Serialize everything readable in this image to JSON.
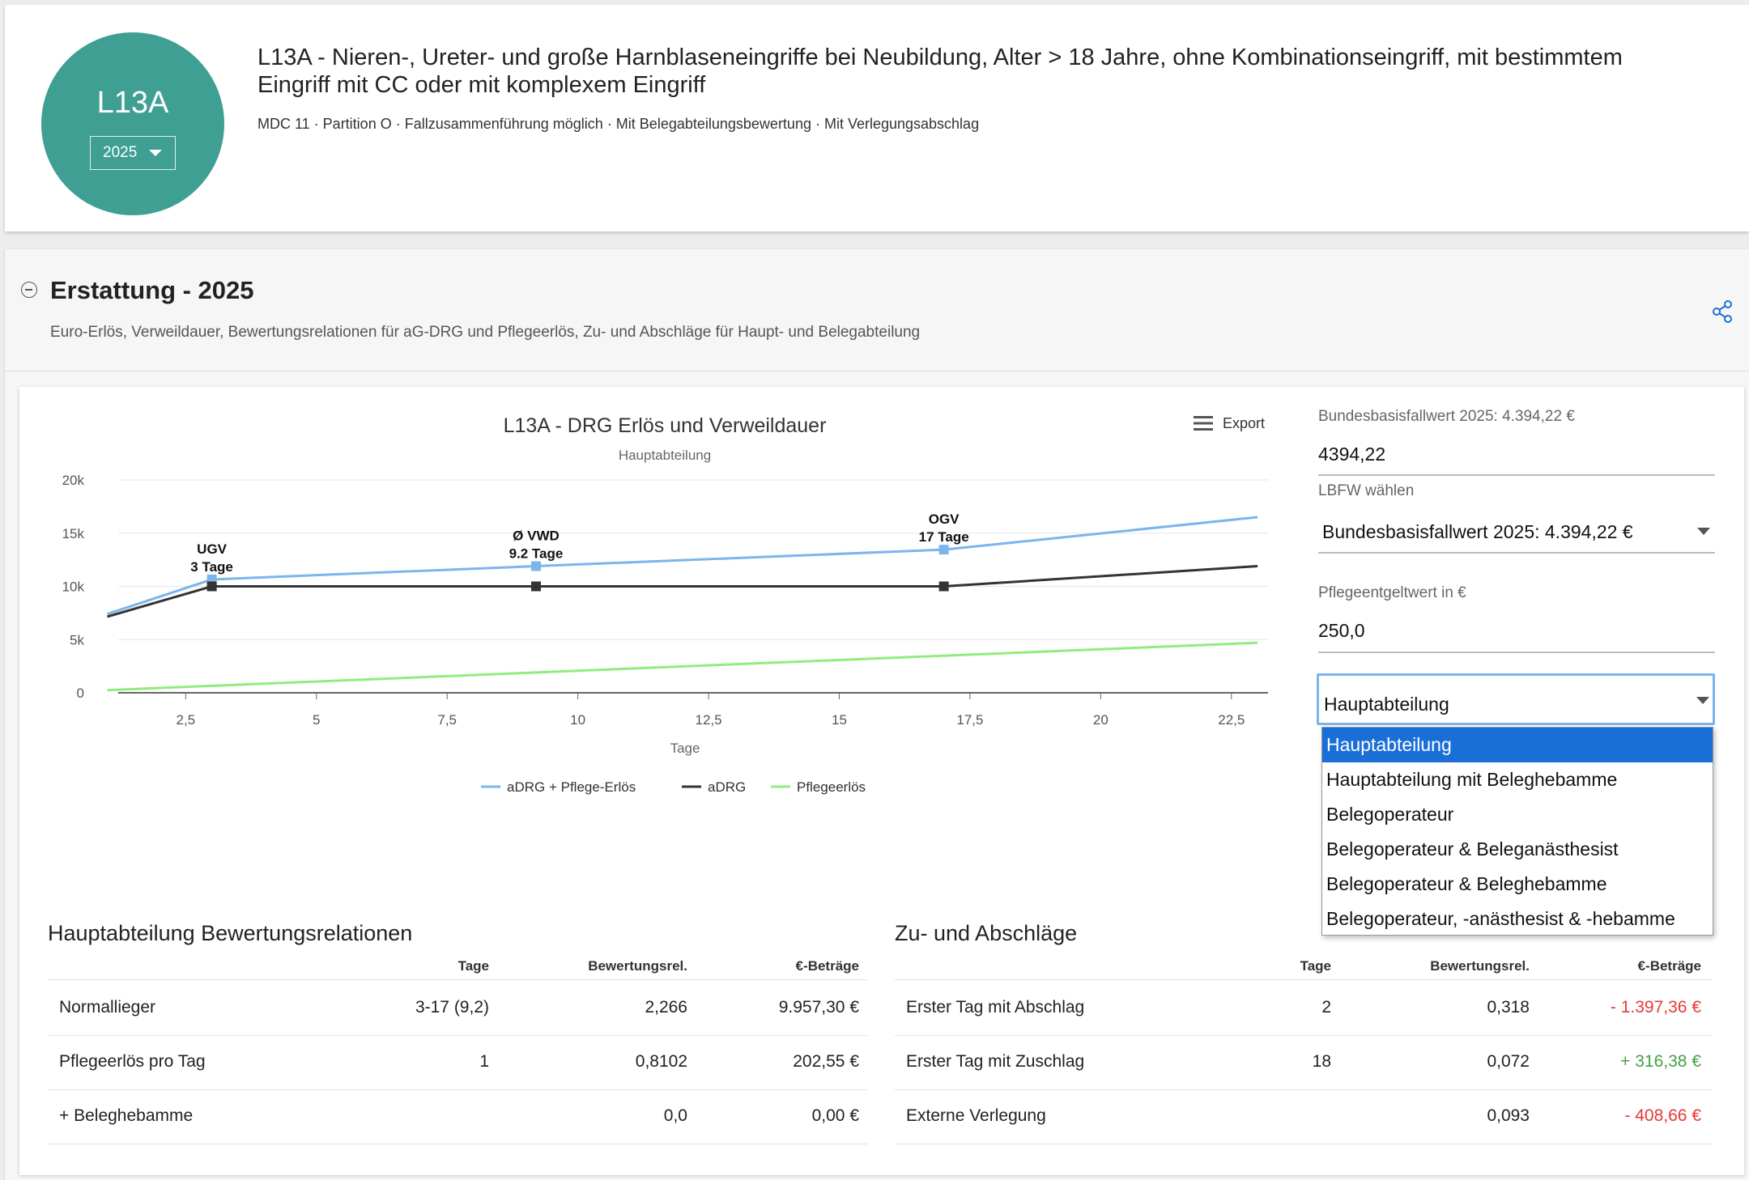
{
  "header": {
    "code": "L13A",
    "year": "2025",
    "title": "L13A - Nieren-, Ureter- und große Harnblaseneingriffe bei Neubildung, Alter > 18 Jahre, ohne Kombinationseingriff, mit bestimmtem Eingriff mit CC oder mit komplexem Eingriff",
    "meta": "MDC 11 · Partition O · Fallzusammenführung möglich · Mit Belegabteilungsbewertung · Mit Verlegungsabschlag",
    "circle_color": "#3f9f93"
  },
  "section": {
    "title": "Erstattung - 2025",
    "subtitle": "Euro-Erlös, Verweildauer, Bewertungsrelationen für aG-DRG und Pflegeerlös, Zu- und Abschläge für Haupt- und Belegabteilung",
    "share_icon": "share-icon",
    "collapse_icon": "minus-circle-icon"
  },
  "chart": {
    "export_label": "Export"
  },
  "chart_data": {
    "type": "line",
    "title": "L13A - DRG Erlös und Verweildauer",
    "subtitle": "Hauptabteilung",
    "xlabel": "Tage",
    "ylabel": "",
    "xlim": [
      0.9,
      23.2
    ],
    "ylim": [
      0,
      20000
    ],
    "x_ticks": [
      2.5,
      5,
      7.5,
      10,
      12.5,
      15,
      17.5,
      20,
      22.5
    ],
    "x_tick_labels": [
      "2,5",
      "5",
      "7,5",
      "10",
      "12,5",
      "15",
      "17,5",
      "20",
      "22,5"
    ],
    "y_ticks": [
      0,
      5000,
      10000,
      15000,
      20000
    ],
    "y_tick_labels": [
      "0",
      "5k",
      "10k",
      "15k",
      "20k"
    ],
    "grid": "horizontal",
    "legend_position": "bottom",
    "series": [
      {
        "name": "aDRG + Pflege-Erlös",
        "color": "#7cb5ec",
        "x": [
          1,
          3,
          9.2,
          17,
          23
        ],
        "y": [
          7400,
          10650,
          11900,
          13450,
          16500
        ]
      },
      {
        "name": "aDRG",
        "color": "#333333",
        "x": [
          1,
          3,
          9.2,
          17,
          23
        ],
        "y": [
          7150,
          10000,
          10000,
          10000,
          11900
        ]
      },
      {
        "name": "Pflegeerlös",
        "color": "#90ed7d",
        "x": [
          1,
          23
        ],
        "y": [
          250,
          4700
        ]
      }
    ],
    "annotations": [
      {
        "line1": "UGV",
        "line2": "3 Tage",
        "x": 3,
        "y": 10650
      },
      {
        "line1": "Ø VWD",
        "line2": "9.2 Tage",
        "x": 9.2,
        "y": 11900
      },
      {
        "line1": "OGV",
        "line2": "17 Tage",
        "x": 17,
        "y": 13450
      }
    ],
    "markers": [
      {
        "series": 0,
        "x": [
          3,
          9.2,
          17
        ]
      },
      {
        "series": 1,
        "x": [
          3,
          9.2,
          17
        ]
      }
    ]
  },
  "form": {
    "bbfw_label": "Bundesbasisfallwert 2025: 4.394,22 €",
    "bbfw_value": "4394,22",
    "lbfw_label": "LBFW wählen",
    "lbfw_value": "Bundesbasisfallwert 2025: 4.394,22 €",
    "pflege_label": "Pflegeentgeltwert in €",
    "pflege_value": "250,0",
    "dept_value": "Hauptabteilung",
    "dept_options": [
      "Hauptabteilung",
      "Hauptabteilung mit Beleghebamme",
      "Belegoperateur",
      "Belegoperateur & Beleganästhesist",
      "Belegoperateur & Beleghebamme",
      "Belegoperateur, -anästhesist & -hebamme"
    ],
    "accent": "#1a6fd6"
  },
  "table_left": {
    "title": "Hauptabteilung Bewertungsrelationen",
    "headers": [
      "Tage",
      "Bewertungsrel.",
      "€-Beträge"
    ],
    "rows": [
      {
        "label": "Normallieger",
        "tage": "3-17 (9,2)",
        "rel": "2,266",
        "betrag": "9.957,30 €"
      },
      {
        "label": "Pflegeerlös pro Tag",
        "tage": "1",
        "rel": "0,8102",
        "betrag": "202,55 €"
      },
      {
        "label": "+ Beleghebamme",
        "tage": "",
        "rel": "0,0",
        "betrag": "0,00 €"
      }
    ]
  },
  "table_right": {
    "title": "Zu- und Abschläge",
    "headers": [
      "Tage",
      "Bewertungsrel.",
      "€-Beträge"
    ],
    "rows": [
      {
        "label": "Erster Tag mit Abschlag",
        "tage": "2",
        "rel": "0,318",
        "betrag": "- 1.397,36 €"
      },
      {
        "label": "Erster Tag mit Zuschlag",
        "tage": "18",
        "rel": "0,072",
        "betrag": "+ 316,38 €"
      },
      {
        "label": "Externe Verlegung",
        "tage": "",
        "rel": "0,093",
        "betrag": "- 408,66 €"
      }
    ],
    "neg_color": "#e53935",
    "pos_color": "#43a047"
  }
}
